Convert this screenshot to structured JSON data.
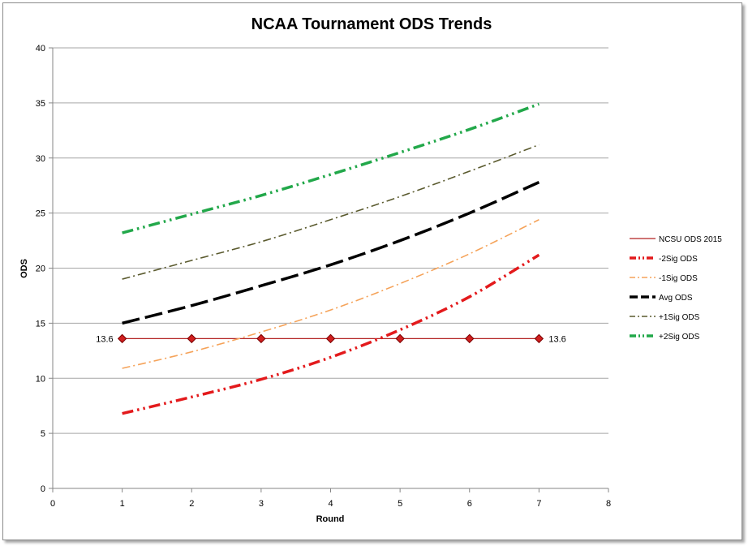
{
  "chart_data": {
    "type": "line",
    "title": "NCAA Tournament ODS Trends",
    "xlabel": "Round",
    "ylabel": "ODS",
    "xlim": [
      0,
      8
    ],
    "ylim": [
      0,
      40
    ],
    "x_ticks": [
      "0",
      "1",
      "2",
      "3",
      "4",
      "5",
      "6",
      "7",
      "8"
    ],
    "y_ticks": [
      "0",
      "5",
      "10",
      "15",
      "20",
      "25",
      "30",
      "35",
      "40"
    ],
    "grid": true,
    "legend_position": "right",
    "x": [
      1,
      2,
      3,
      4,
      5,
      6,
      7
    ],
    "series": [
      {
        "name": "NCSU ODS 2015",
        "values": [
          13.6,
          13.6,
          13.6,
          13.6,
          13.6,
          13.6,
          13.6
        ],
        "color": "#b22222",
        "style": "solid-markers",
        "data_labels": [
          "13.6",
          "13.6"
        ]
      },
      {
        "name": "-2Sig ODS",
        "values": [
          6.8,
          8.3,
          9.9,
          11.9,
          14.4,
          17.4,
          21.2
        ],
        "color": "#e31a1c",
        "style": "dash-dot-dot"
      },
      {
        "name": "-1Sig ODS",
        "values": [
          10.9,
          12.4,
          14.2,
          16.2,
          18.6,
          21.3,
          24.4
        ],
        "color": "#f5a35a",
        "style": "dash-dot"
      },
      {
        "name": "Avg ODS",
        "values": [
          15.0,
          16.6,
          18.4,
          20.3,
          22.5,
          25.0,
          27.8
        ],
        "color": "#000000",
        "style": "long-dash"
      },
      {
        "name": "+1Sig ODS",
        "values": [
          19.0,
          20.7,
          22.4,
          24.4,
          26.5,
          28.8,
          31.2
        ],
        "color": "#5a5a2e",
        "style": "dash-dot"
      },
      {
        "name": "+2Sig ODS",
        "values": [
          23.2,
          24.9,
          26.6,
          28.5,
          30.5,
          32.6,
          34.9
        ],
        "color": "#22a84a",
        "style": "dash-dot-dot"
      }
    ]
  }
}
